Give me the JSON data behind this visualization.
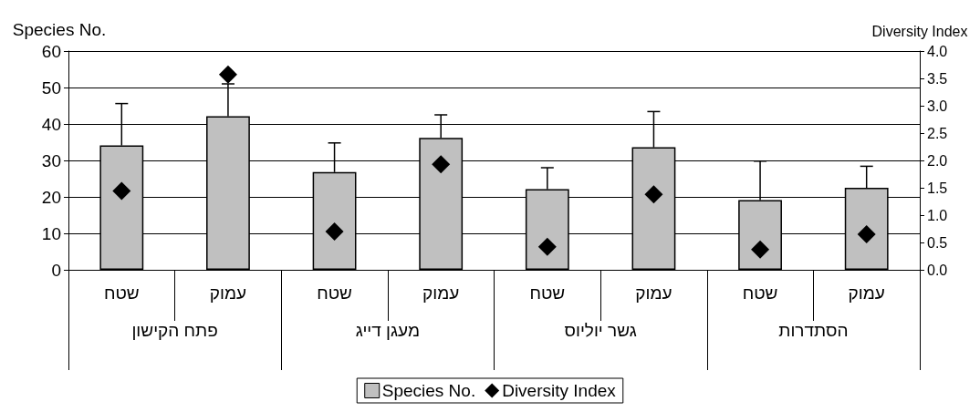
{
  "chart_data": {
    "type": "bar",
    "categories": [
      "שטח",
      "עמוק",
      "שטח",
      "עמוק",
      "שטח",
      "עמוק",
      "שטח",
      "עמוק"
    ],
    "annotations": [
      "פתח הקישון",
      "מעגן דייג",
      "גשר יוליוס",
      "הסתדרות"
    ],
    "ylabel": "Species No.",
    "y2label": "Diversity Index",
    "series": [
      {
        "name": "Species No.",
        "color": "#c0c0c0",
        "values": [
          34.1,
          42.1,
          26.8,
          36.2,
          22.1,
          33.6,
          19.1,
          22.5
        ],
        "errors": [
          [
            34.1,
            45.6
          ],
          [
            42.1,
            51
          ],
          [
            26.8,
            34.8
          ],
          [
            36.2,
            42.5
          ],
          [
            22.1,
            28.0
          ],
          [
            33.6,
            43.4
          ],
          [
            19.1,
            29.8
          ],
          [
            22.5,
            28.4
          ]
        ]
      },
      {
        "name": "Diversity Index",
        "type": "scatter",
        "axis": "y2",
        "color": "#000000",
        "marker": "diamond",
        "values": [
          1.44,
          3.57,
          0.7,
          1.93,
          0.42,
          1.38,
          0.37,
          0.65
        ]
      }
    ],
    "ylim": [
      0,
      60
    ],
    "yticks": [
      0,
      10,
      20,
      30,
      40,
      50,
      60
    ],
    "y2lim": [
      0,
      4
    ],
    "y2ticks": [
      {
        "value": 0,
        "label": "0.0"
      },
      {
        "value": 0.5,
        "label": "0.5"
      },
      {
        "value": 1,
        "label": "1.0"
      },
      {
        "value": 1.5,
        "label": "1.5"
      },
      {
        "value": 2,
        "label": "2.0"
      },
      {
        "value": 2.5,
        "label": "2.5"
      },
      {
        "value": 3,
        "label": "3.0"
      },
      {
        "value": 3.5,
        "label": "3.5"
      },
      {
        "value": 4,
        "label": "4.0"
      }
    ],
    "grid": "y",
    "legend": "bottom"
  }
}
